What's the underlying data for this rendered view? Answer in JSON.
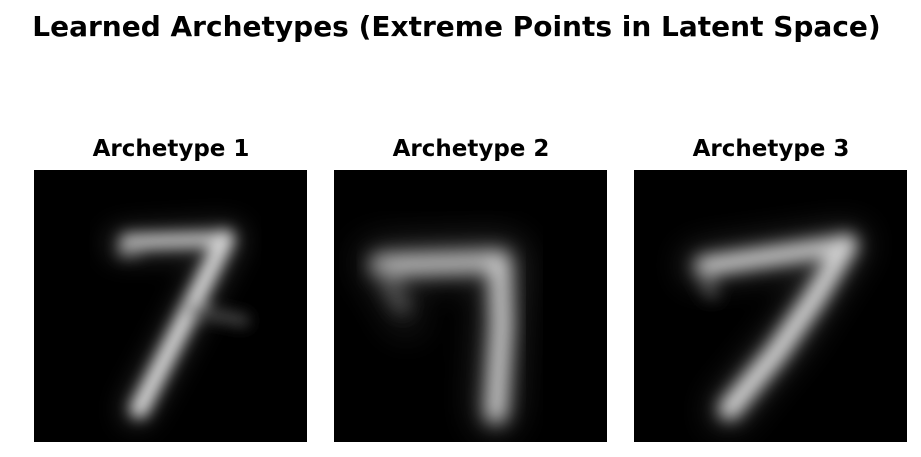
{
  "figure": {
    "title": "Learned Archetypes (Extreme Points in Latent Space)"
  },
  "panels": [
    {
      "title": "Archetype 1",
      "image_semantic": "digit-7-archetype-image"
    },
    {
      "title": "Archetype 2",
      "image_semantic": "digit-7-archetype-image"
    },
    {
      "title": "Archetype 3",
      "image_semantic": "digit-7-archetype-image"
    }
  ],
  "colors": {
    "background": "#ffffff",
    "image_background": "#000000",
    "stroke": "#d2d2d2"
  }
}
